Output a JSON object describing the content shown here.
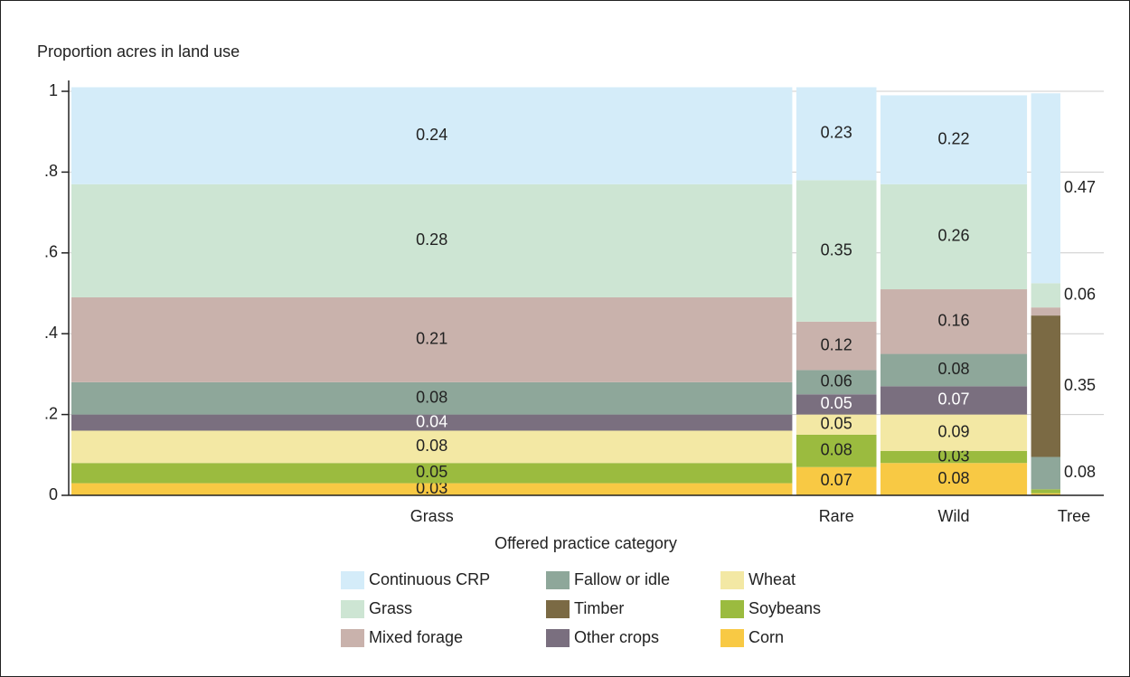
{
  "chart_data": {
    "type": "mosaic",
    "y_label": "Proportion acres in land use",
    "x_label": "Offered practice category",
    "categories": [
      "Grass",
      "Rare",
      "Wild",
      "Tree"
    ],
    "widths": [
      0.738,
      0.082,
      0.15,
      0.03
    ],
    "ylim": [
      0,
      1
    ],
    "yticks": [
      0,
      {
        "value": 0.2,
        "label": ".2"
      },
      {
        "value": 0.4,
        "label": ".4"
      },
      {
        "value": 0.6,
        "label": ".6"
      },
      {
        "value": 0.8,
        "label": ".8"
      },
      1
    ],
    "grid": true,
    "series": [
      {
        "name": "Corn",
        "color": "#f8c944",
        "values": [
          0.03,
          0.07,
          0.08,
          0.005
        ]
      },
      {
        "name": "Soybeans",
        "color": "#9bbb3f",
        "values": [
          0.05,
          0.08,
          0.03,
          0.01
        ]
      },
      {
        "name": "Wheat",
        "color": "#f3e8a4",
        "values": [
          0.08,
          0.05,
          0.09,
          null
        ]
      },
      {
        "name": "Other crops",
        "color": "#7a6f7f",
        "values": [
          0.04,
          0.05,
          0.07,
          null
        ]
      },
      {
        "name": "Fallow or idle",
        "color": "#8ea79a",
        "values": [
          0.08,
          0.06,
          0.08,
          0.08
        ]
      },
      {
        "name": "Timber",
        "color": "#7b6a44",
        "values": [
          null,
          null,
          null,
          0.35
        ]
      },
      {
        "name": "Mixed forage",
        "color": "#c9b2ac",
        "values": [
          0.21,
          0.12,
          0.16,
          0.02
        ]
      },
      {
        "name": "Grass",
        "color": "#cde5d3",
        "values": [
          0.28,
          0.35,
          0.26,
          0.06
        ]
      },
      {
        "name": "Continuous CRP",
        "color": "#d4ecf9",
        "values": [
          0.24,
          0.23,
          0.22,
          0.47
        ]
      }
    ]
  }
}
